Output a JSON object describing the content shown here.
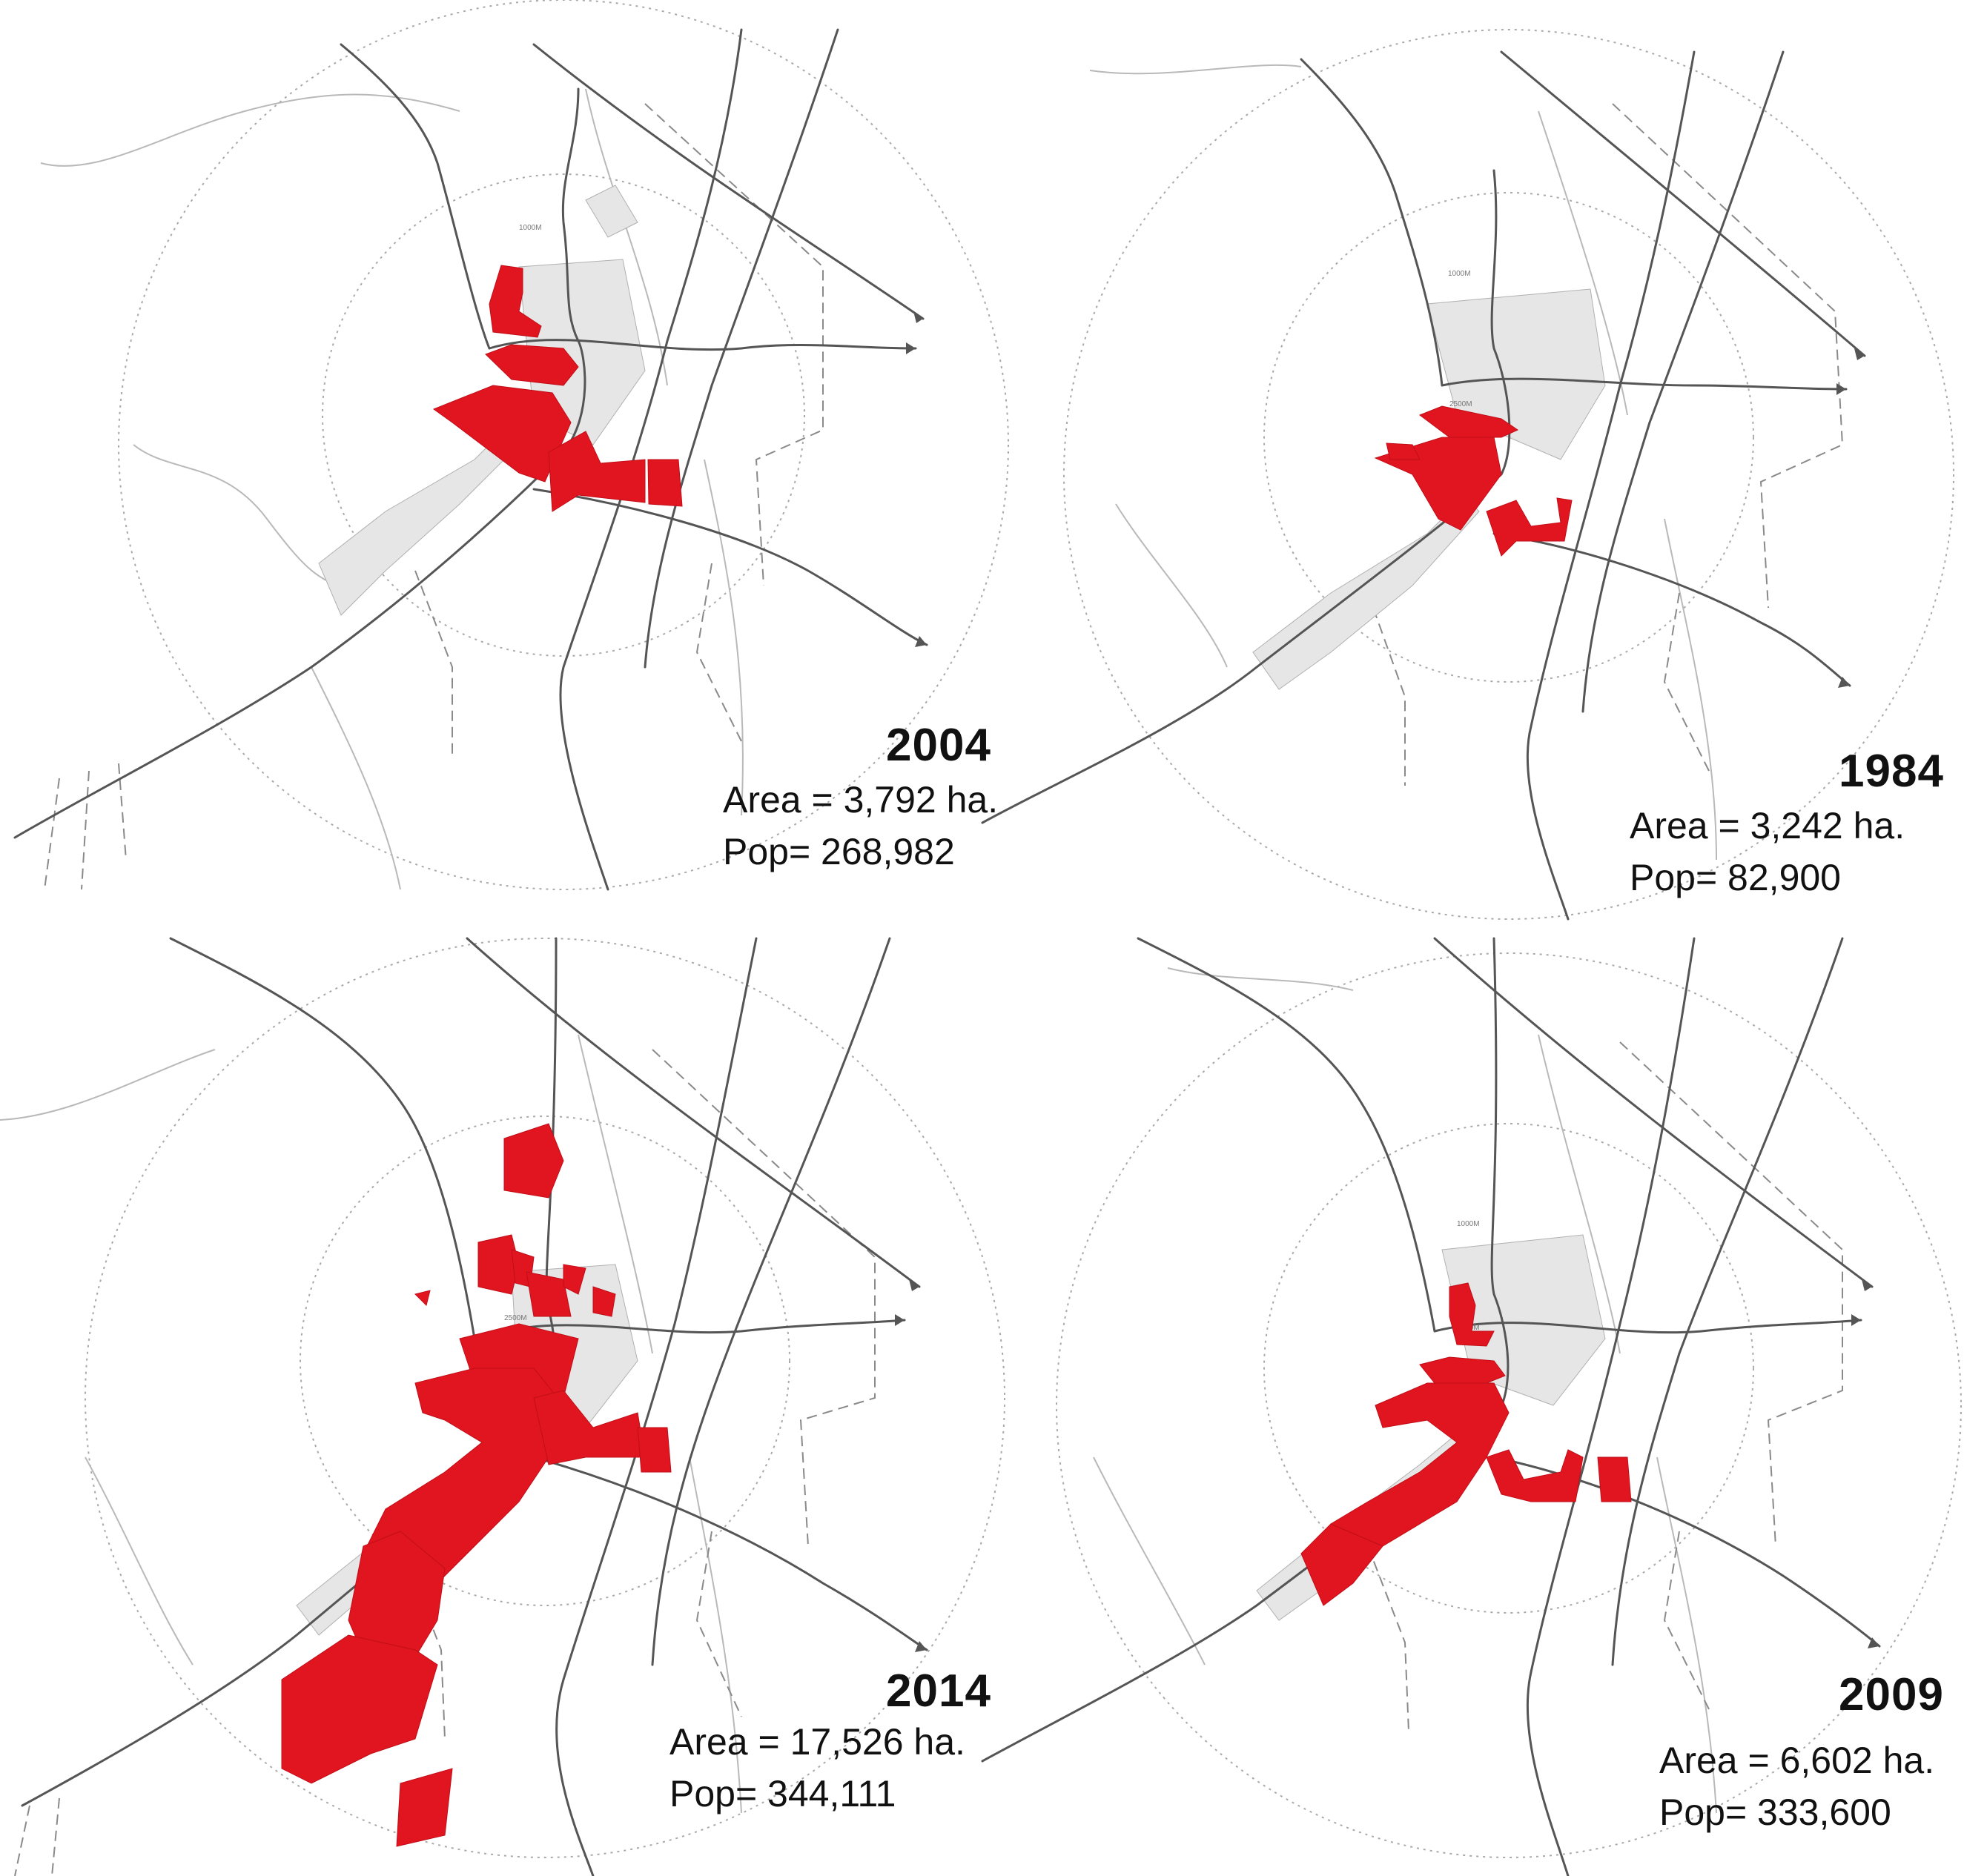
{
  "colors": {
    "urban": "#e0151f",
    "road": "#555555",
    "minor": "#b9b9b9",
    "ring": "#a9a9a9",
    "text": "#111111"
  },
  "panels": [
    {
      "year": "2004",
      "area": "Area = 3,792 ha.",
      "pop": "Pop= 268,982"
    },
    {
      "year": "1984",
      "area": "Area = 3,242 ha.",
      "pop": "Pop= 82,900"
    },
    {
      "year": "2014",
      "area": "Area = 17,526 ha.",
      "pop": "Pop= 344,111"
    },
    {
      "year": "2009",
      "area": "Area = 6,602 ha.",
      "pop": "Pop= 333,600"
    }
  ],
  "ring_labels": [
    "1000M",
    "2500M"
  ]
}
